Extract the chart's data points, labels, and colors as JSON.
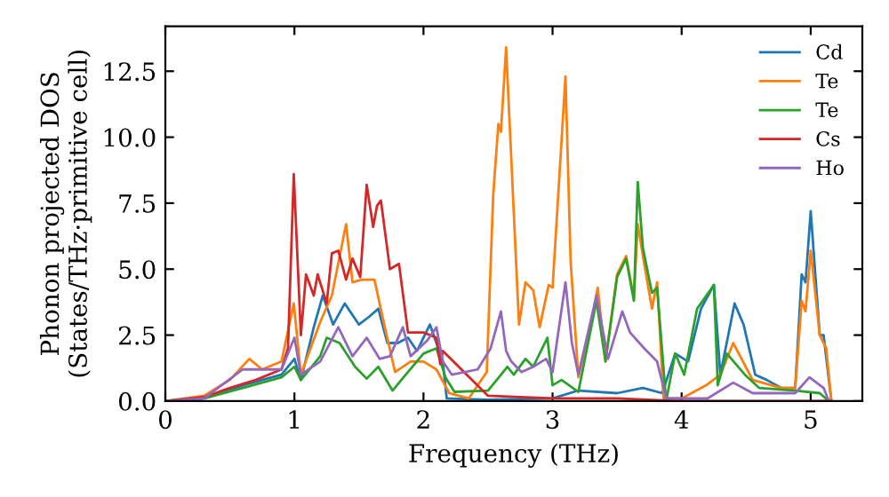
{
  "chart_data": {
    "type": "line",
    "xlabel": "Frequency (THz)",
    "ylabel": "Phonon projected DOS\n(States/THz·primitive cell)",
    "xlim": [
      0,
      5.4
    ],
    "ylim": [
      0,
      14.2
    ],
    "xticks": [
      0,
      1,
      2,
      3,
      4,
      5
    ],
    "yticks": [
      {
        "value": 0,
        "label": "0.0"
      },
      {
        "value": 2.5,
        "label": "2.5"
      },
      {
        "value": 5,
        "label": "5.0"
      },
      {
        "value": 7.5,
        "label": "7.5"
      },
      {
        "value": 10,
        "label": "10.0"
      },
      {
        "value": 12.5,
        "label": "12.5"
      }
    ],
    "legend": "top right",
    "grid": false,
    "marker": "none",
    "line_style": "solid",
    "series": [
      {
        "name": "Cd",
        "color": "#1f77b4",
        "x": [
          0,
          0.3,
          0.6,
          0.9,
          1.0,
          1.05,
          1.15,
          1.22,
          1.3,
          1.39,
          1.5,
          1.58,
          1.65,
          1.72,
          1.8,
          1.88,
          1.95,
          2.05,
          2.15,
          2.18,
          2.5,
          3.0,
          3.2,
          3.5,
          3.7,
          3.85,
          3.95,
          4.05,
          4.15,
          4.25,
          4.3,
          4.41,
          4.48,
          4.57,
          4.66,
          4.77,
          4.88,
          4.93,
          4.96,
          5.0,
          5.07,
          5.1,
          5.16
        ],
        "values": [
          0,
          0.1,
          0.6,
          1.0,
          1.6,
          0.8,
          2.8,
          4.0,
          2.9,
          3.7,
          2.9,
          3.2,
          3.5,
          2.2,
          2.2,
          2.4,
          1.9,
          2.9,
          1.5,
          0.1,
          0.05,
          0.1,
          0.4,
          0.3,
          0.5,
          0.3,
          1.8,
          1.5,
          3.5,
          4.4,
          1.0,
          3.7,
          2.9,
          1.0,
          0.8,
          0.5,
          0.5,
          4.8,
          4.5,
          7.2,
          2.5,
          2.5,
          0
        ]
      },
      {
        "name": "Te",
        "color": "#ff7f0e",
        "x": [
          0,
          0.3,
          0.5,
          0.65,
          0.75,
          0.9,
          0.995,
          1.05,
          1.2,
          1.29,
          1.4,
          1.45,
          1.52,
          1.62,
          1.7,
          1.78,
          1.9,
          2.0,
          2.1,
          2.2,
          2.35,
          2.49,
          2.54,
          2.58,
          2.6,
          2.64,
          2.74,
          2.79,
          2.85,
          2.9,
          2.97,
          3.0,
          3.1,
          3.14,
          3.2,
          3.3,
          3.35,
          3.41,
          3.5,
          3.57,
          3.63,
          3.66,
          3.7,
          3.77,
          3.81,
          3.86,
          4.0,
          4.19,
          4.3,
          4.4,
          4.55,
          4.77,
          4.88,
          4.93,
          4.96,
          5.0,
          5.07,
          5.12,
          5.16
        ],
        "values": [
          0,
          0.2,
          0.8,
          1.6,
          1.2,
          1.5,
          3.7,
          1.0,
          3.0,
          4.0,
          6.7,
          4.5,
          4.6,
          4.6,
          2.8,
          1.1,
          1.5,
          1.5,
          1.2,
          0.3,
          0.1,
          1.1,
          7.8,
          10.5,
          10.2,
          13.4,
          2.9,
          4.5,
          4.2,
          2.8,
          4.4,
          4.3,
          12.3,
          5.3,
          0.9,
          3.0,
          4.3,
          1.5,
          4.8,
          5.5,
          3.9,
          6.7,
          5.5,
          3.5,
          4.5,
          0.1,
          0.1,
          0.6,
          1.0,
          2.2,
          0.8,
          0.5,
          0.5,
          3.8,
          3.4,
          5.7,
          2.5,
          2.0,
          0
        ]
      },
      {
        "name": "Te",
        "color": "#2ca02c",
        "x": [
          0,
          0.3,
          0.6,
          0.9,
          1.0,
          1.05,
          1.2,
          1.25,
          1.35,
          1.47,
          1.56,
          1.65,
          1.76,
          1.88,
          2.0,
          2.1,
          2.17,
          2.24,
          2.5,
          2.65,
          2.7,
          2.79,
          2.85,
          2.96,
          3.0,
          3.07,
          3.2,
          3.34,
          3.41,
          3.5,
          3.57,
          3.63,
          3.66,
          3.7,
          3.77,
          3.81,
          3.88,
          3.95,
          4.02,
          4.12,
          4.25,
          4.28,
          4.35,
          4.49,
          4.6,
          4.88,
          5.07,
          5.14
        ],
        "values": [
          0,
          0.1,
          0.5,
          0.9,
          1.3,
          0.8,
          1.7,
          2.4,
          2.2,
          1.3,
          0.85,
          1.3,
          0.4,
          1.1,
          1.8,
          2.0,
          0.9,
          0.35,
          0.4,
          1.3,
          1.0,
          1.6,
          1.3,
          2.4,
          0.6,
          0.8,
          0.35,
          3.8,
          1.5,
          4.7,
          5.4,
          3.8,
          8.3,
          5.8,
          4.1,
          4.3,
          0,
          1.8,
          1.0,
          3.5,
          4.4,
          0.6,
          1.8,
          1.0,
          0.5,
          0.4,
          0.3,
          0
        ]
      },
      {
        "name": "Cs",
        "color": "#d62728",
        "x": [
          0,
          0.3,
          0.5,
          0.7,
          0.9,
          0.95,
          0.995,
          1.05,
          1.09,
          1.15,
          1.18,
          1.25,
          1.29,
          1.34,
          1.4,
          1.45,
          1.51,
          1.56,
          1.61,
          1.64,
          1.67,
          1.74,
          1.81,
          1.88,
          2.0,
          2.1,
          2.13,
          2.15,
          2.5,
          3.0,
          3.5,
          4.0,
          5.16
        ],
        "values": [
          0,
          0.15,
          0.5,
          0.8,
          1.2,
          2.0,
          8.6,
          2.5,
          4.8,
          4.0,
          4.8,
          3.7,
          5.6,
          5.7,
          4.6,
          5.4,
          4.7,
          8.2,
          6.6,
          7.4,
          7.6,
          5.0,
          5.2,
          2.6,
          2.6,
          2.4,
          1.4,
          1.9,
          0.2,
          0.1,
          0.1,
          0.0,
          0
        ]
      },
      {
        "name": "Ho",
        "color": "#9467bd",
        "x": [
          0,
          0.3,
          0.6,
          0.9,
          1.0,
          1.05,
          1.2,
          1.34,
          1.45,
          1.56,
          1.66,
          1.74,
          1.84,
          1.9,
          2.03,
          2.1,
          2.15,
          2.22,
          2.42,
          2.52,
          2.6,
          2.64,
          2.68,
          2.76,
          2.85,
          2.95,
          3.0,
          3.1,
          3.15,
          3.2,
          3.34,
          3.43,
          3.54,
          3.6,
          3.71,
          3.81,
          3.88,
          4.2,
          4.4,
          4.55,
          4.88,
          4.99,
          5.1,
          5.14
        ],
        "values": [
          0,
          0.1,
          1.2,
          1.2,
          2.4,
          1.0,
          1.5,
          2.8,
          1.7,
          2.4,
          1.6,
          1.7,
          2.8,
          1.7,
          2.3,
          2.8,
          1.5,
          1.0,
          1.2,
          2.0,
          3.4,
          1.9,
          1.5,
          1.1,
          1.3,
          1.6,
          1.1,
          4.5,
          2.2,
          1.0,
          4.0,
          1.6,
          3.4,
          2.6,
          2.0,
          1.5,
          0.1,
          0.1,
          0.7,
          0.3,
          0.3,
          0.9,
          0.5,
          0
        ]
      }
    ]
  }
}
